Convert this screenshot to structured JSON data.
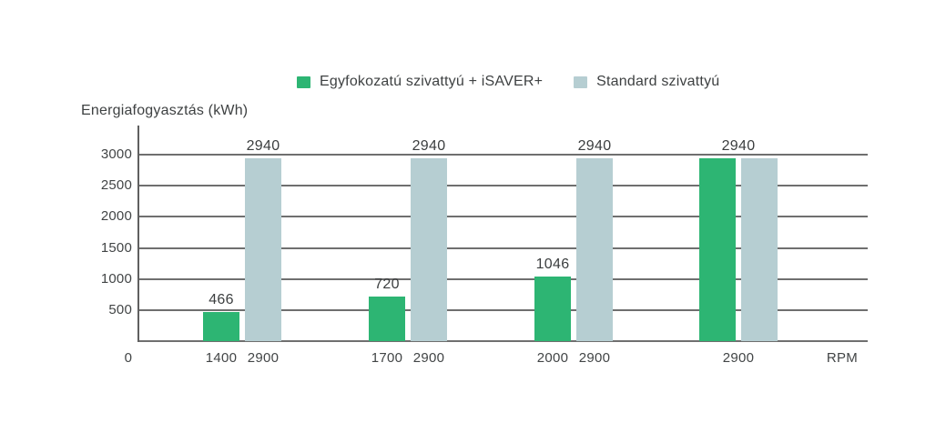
{
  "legend": {
    "items": [
      {
        "label": "Egyfokozatú szivattyú + iSAVER+",
        "color": "#2db573"
      },
      {
        "label": "Standard szivattyú",
        "color": "#b6ced2"
      }
    ]
  },
  "chart_data": {
    "type": "bar",
    "title": "Energiafogyasztás (kWh)",
    "ylabel": "Energiafogyasztás (kWh)",
    "xlabel": "RPM",
    "ylim": [
      0,
      3000
    ],
    "yticks": [
      500,
      1000,
      1500,
      2000,
      2500,
      3000
    ],
    "origin_label": "0",
    "x_unit_label": "RPM",
    "grid": true,
    "legend_position": "top-center",
    "series": [
      {
        "name": "Egyfokozatú szivattyú + iSAVER+",
        "color": "#2db573"
      },
      {
        "name": "Standard szivattyú",
        "color": "#b6ced2"
      }
    ],
    "groups": [
      {
        "combined_label": false,
        "bars": [
          {
            "series": 0,
            "value": 466,
            "rpm": "1400"
          },
          {
            "series": 1,
            "value": 2940,
            "rpm": "2900"
          }
        ]
      },
      {
        "combined_label": false,
        "bars": [
          {
            "series": 0,
            "value": 720,
            "rpm": "1700"
          },
          {
            "series": 1,
            "value": 2940,
            "rpm": "2900"
          }
        ]
      },
      {
        "combined_label": false,
        "bars": [
          {
            "series": 0,
            "value": 1046,
            "rpm": "2000"
          },
          {
            "series": 1,
            "value": 2940,
            "rpm": "2900"
          }
        ]
      },
      {
        "combined_label": true,
        "shared_value_label": "2940",
        "shared_rpm_label": "2900",
        "bars": [
          {
            "series": 0,
            "value": 2940
          },
          {
            "series": 1,
            "value": 2940
          }
        ]
      }
    ]
  }
}
